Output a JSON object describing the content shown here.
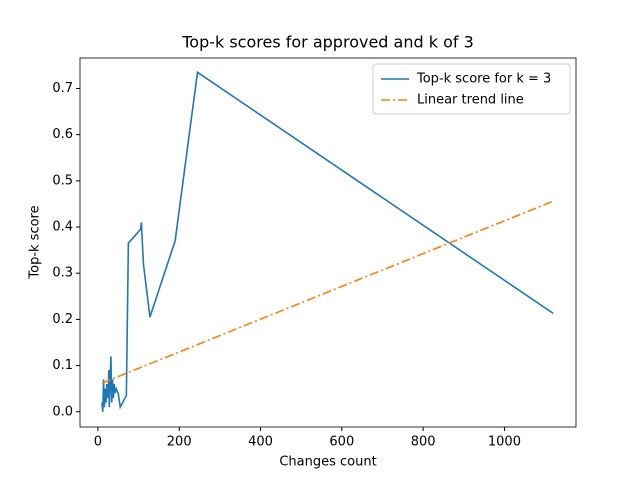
{
  "chart_data": {
    "type": "line",
    "title": "Top-k scores for approved and k of 3",
    "x_label": "Changes count",
    "y_label": "Top-k score",
    "xlim": [
      -44,
      1176
    ],
    "ylim": [
      -0.033,
      0.766
    ],
    "xticks": [
      0,
      200,
      400,
      600,
      800,
      1000
    ],
    "yticks": [
      {
        "value": 0,
        "label": "0.0"
      },
      0.1,
      0.2,
      0.3,
      0.4,
      0.5,
      0.6,
      0.7
    ],
    "legend": "upper right",
    "grid": false,
    "series": [
      {
        "name": "Top-k score for k = 3",
        "color": "#1f77b4",
        "linestyle": "solid",
        "x": [
          10,
          12,
          14,
          16,
          18,
          20,
          22,
          25,
          27,
          28,
          30,
          32,
          34,
          36,
          38,
          40,
          42,
          45,
          50,
          55,
          70,
          75,
          105,
          107,
          112,
          128,
          190,
          245,
          1120
        ],
        "values": [
          0.02,
          0.0,
          0.07,
          0.01,
          0.05,
          0.02,
          0.06,
          0.03,
          0.09,
          0.01,
          0.06,
          0.12,
          0.02,
          0.07,
          0.03,
          0.06,
          0.04,
          0.05,
          0.04,
          0.01,
          0.035,
          0.365,
          0.395,
          0.41,
          0.32,
          0.205,
          0.37,
          0.735,
          0.213
        ]
      },
      {
        "name": "Linear trend line",
        "color": "#ff7f0e",
        "linestyle": "dashdot",
        "x": [
          10,
          1120
        ],
        "values": [
          0.062,
          0.456
        ]
      }
    ]
  }
}
